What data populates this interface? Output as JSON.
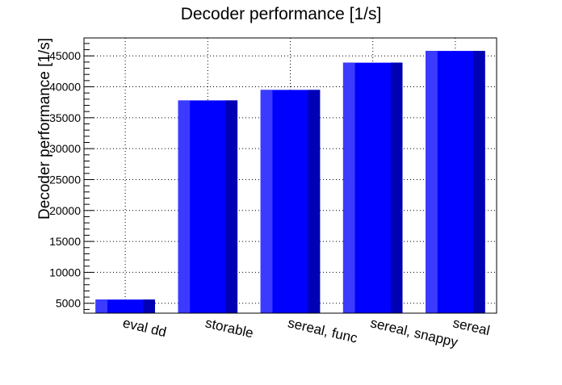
{
  "chart_data": {
    "type": "bar",
    "title": "Decoder performance [1/s]",
    "xlabel": "",
    "ylabel": "Decoder performance [1/s]",
    "categories": [
      "eval dd",
      "storable",
      "sereal, func",
      "sereal, snappy",
      "sereal"
    ],
    "values": [
      5600,
      37800,
      39500,
      43900,
      45800
    ],
    "ylim": [
      3400,
      47900
    ],
    "yticks": [
      5000,
      10000,
      15000,
      20000,
      25000,
      30000,
      35000,
      40000,
      45000
    ],
    "grid": true,
    "legend": "none",
    "colors": {
      "bar_main": "#0000ff",
      "bar_light": "#3b3bff",
      "bar_dark": "#0000b4",
      "grid": "#000000",
      "frame": "#000000"
    }
  }
}
